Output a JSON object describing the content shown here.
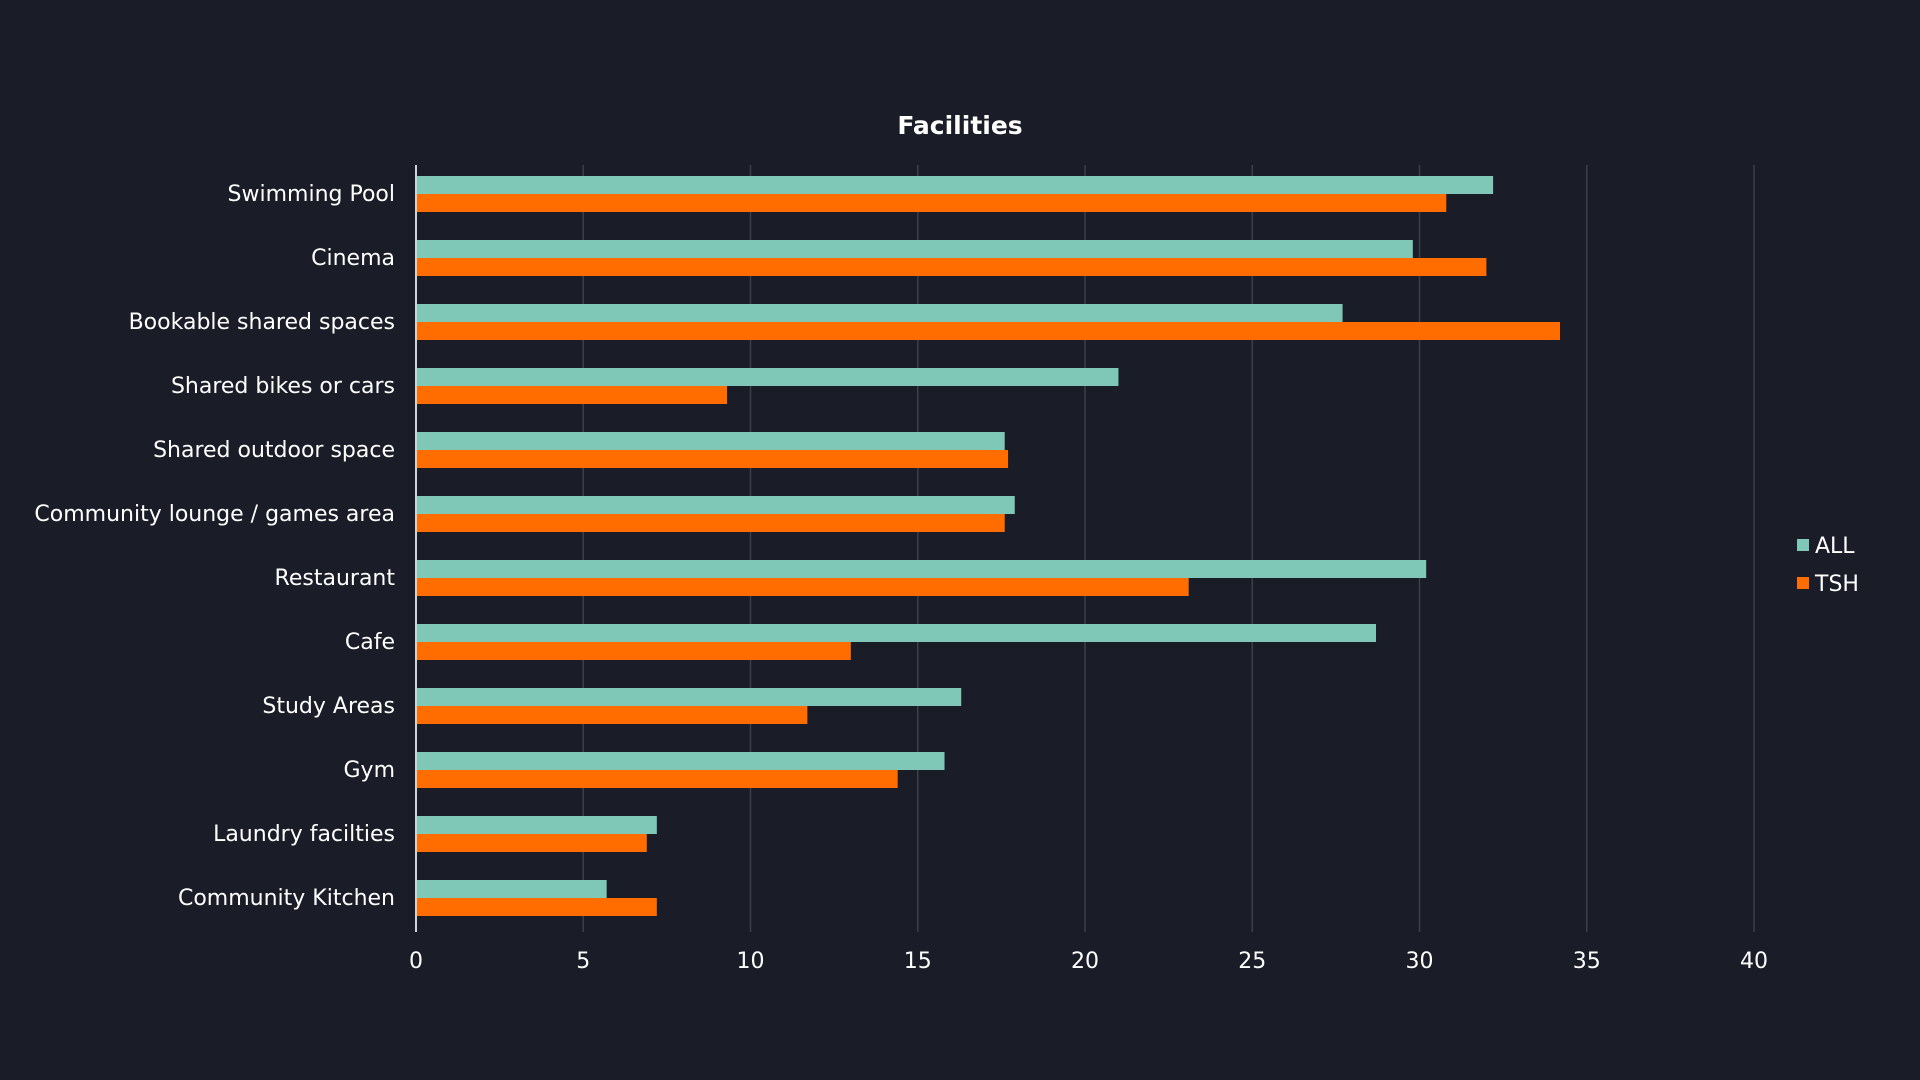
{
  "chart_data": {
    "type": "bar",
    "orientation": "horizontal",
    "title": "Facilities",
    "xlabel": "",
    "ylabel": "",
    "xlim": [
      0,
      40
    ],
    "ticks": [
      0,
      5,
      10,
      15,
      20,
      25,
      30,
      35,
      40
    ],
    "grid": true,
    "legend_position": "right",
    "categories": [
      "Swimming Pool",
      "Cinema",
      "Bookable shared spaces",
      "Shared bikes or cars",
      "Shared outdoor space",
      "Community lounge / games area",
      "Restaurant",
      "Cafe",
      "Study Areas",
      "Gym",
      "Laundry facilties",
      "Community Kitchen"
    ],
    "series": [
      {
        "name": "ALL",
        "color": "#7fc8b8",
        "values": [
          32.2,
          29.8,
          27.7,
          21.0,
          17.6,
          17.9,
          30.2,
          28.7,
          16.3,
          15.8,
          7.2,
          5.7
        ]
      },
      {
        "name": "TSH",
        "color": "#ff6d00",
        "values": [
          30.8,
          32.0,
          34.2,
          9.3,
          17.7,
          17.6,
          23.1,
          13.0,
          11.7,
          14.4,
          6.9,
          7.2
        ]
      }
    ]
  }
}
